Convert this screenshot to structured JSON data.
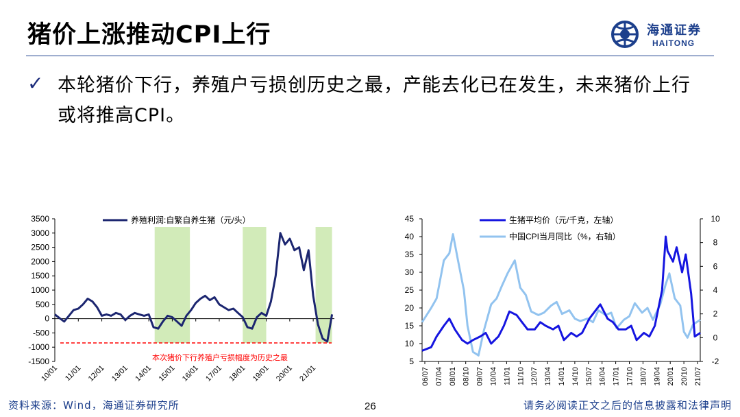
{
  "header": {
    "title": "猪价上涨推动CPI上行",
    "logo_cn": "海通证券",
    "logo_en": "HAITONG"
  },
  "bullet": {
    "text": "本轮猪价下行，养殖户亏损创历史之最，产能去化已在发生，未来猪价上行或将推高CPI。"
  },
  "footer": {
    "source": "资料来源：Wind，海通证券研究所",
    "page": "26",
    "disclaimer": "请务必阅读正文之后的信息披露和法律声明"
  },
  "colors": {
    "brand": "#1c3f8c",
    "navy": "#1c2670",
    "blue": "#1515e0",
    "lightblue": "#92c3ef",
    "shade": "#d2ebb9",
    "red": "#ff0000"
  },
  "chart_data": [
    {
      "type": "line",
      "legend": [
        "养殖利润:自繁自养生猪（元/头）"
      ],
      "annotation": "本次猪价下行养殖户亏损幅度为历史之最",
      "ylim": [
        -1500,
        3500
      ],
      "yticks": [
        "3500",
        "3000",
        "2500",
        "2000",
        "1500",
        "1000",
        "500",
        "0",
        "-500",
        "-1000",
        "-1500"
      ],
      "xlim": [
        2010.0,
        2021.9
      ],
      "xticks": [
        "10/01",
        "11/01",
        "12/01",
        "13/01",
        "14/01",
        "15/01",
        "16/01",
        "17/01",
        "18/01",
        "19/01",
        "20/01",
        "21/01"
      ],
      "reference_line": -850,
      "shaded_periods": [
        [
          2014.25,
          2015.75
        ],
        [
          2018.0,
          2019.0
        ],
        [
          2021.1,
          2021.8
        ]
      ],
      "series": [
        {
          "x": [
            2010.0,
            2010.2,
            2010.4,
            2010.6,
            2010.8,
            2011.0,
            2011.2,
            2011.4,
            2011.6,
            2011.8,
            2012.0,
            2012.2,
            2012.4,
            2012.6,
            2012.8,
            2013.0,
            2013.2,
            2013.4,
            2013.6,
            2013.8,
            2014.0,
            2014.2,
            2014.4,
            2014.6,
            2014.8,
            2015.0,
            2015.2,
            2015.4,
            2015.6,
            2015.8,
            2016.0,
            2016.2,
            2016.4,
            2016.6,
            2016.8,
            2017.0,
            2017.2,
            2017.4,
            2017.6,
            2017.8,
            2018.0,
            2018.2,
            2018.4,
            2018.6,
            2018.8,
            2019.0,
            2019.2,
            2019.4,
            2019.6,
            2019.8,
            2020.0,
            2020.2,
            2020.4,
            2020.6,
            2020.8,
            2021.0,
            2021.2,
            2021.4,
            2021.6,
            2021.8
          ],
          "values": [
            150,
            20,
            -100,
            100,
            300,
            350,
            500,
            700,
            600,
            400,
            100,
            150,
            100,
            200,
            150,
            -50,
            100,
            200,
            150,
            100,
            150,
            -300,
            -350,
            -100,
            100,
            50,
            -100,
            -250,
            100,
            300,
            550,
            700,
            800,
            650,
            750,
            500,
            400,
            300,
            350,
            200,
            50,
            -300,
            -350,
            50,
            200,
            100,
            600,
            1500,
            3000,
            2600,
            2800,
            2400,
            2500,
            1700,
            2400,
            800,
            -200,
            -700,
            -800,
            150
          ]
        }
      ]
    },
    {
      "type": "line",
      "legend": [
        "生猪平均价（元/千克，左轴）",
        "中国CPI当月同比（%，右轴）"
      ],
      "ylim": [
        5,
        45
      ],
      "yticks": [
        "45",
        "40",
        "35",
        "30",
        "25",
        "20",
        "15",
        "10",
        "5"
      ],
      "y2lim": [
        -2,
        10
      ],
      "y2ticks": [
        "10",
        "8",
        "6",
        "4",
        "2",
        "0",
        "-2"
      ],
      "xlim": [
        2006.5,
        2021.8
      ],
      "xticks": [
        "06/07",
        "07/04",
        "08/01",
        "08/10",
        "09/07",
        "10/04",
        "11/01",
        "11/10",
        "12/07",
        "13/04",
        "14/01",
        "14/10",
        "15/07",
        "16/04",
        "17/01",
        "17/10",
        "18/07",
        "19/04",
        "20/01",
        "20/10",
        "21/07"
      ],
      "series": [
        {
          "name": "生猪平均价（元/千克，左轴）",
          "axis": "left",
          "x": [
            2006.5,
            2007.0,
            2007.3,
            2007.7,
            2008.0,
            2008.3,
            2008.7,
            2009.0,
            2009.3,
            2009.7,
            2010.0,
            2010.3,
            2010.7,
            2011.0,
            2011.3,
            2011.7,
            2012.0,
            2012.3,
            2012.7,
            2013.0,
            2013.3,
            2013.7,
            2014.0,
            2014.3,
            2014.7,
            2015.0,
            2015.3,
            2015.7,
            2016.0,
            2016.3,
            2016.7,
            2017.0,
            2017.3,
            2017.7,
            2018.0,
            2018.3,
            2018.7,
            2019.0,
            2019.3,
            2019.7,
            2019.9,
            2020.0,
            2020.3,
            2020.5,
            2020.8,
            2021.0,
            2021.3,
            2021.5,
            2021.8
          ],
          "values": [
            8,
            9,
            12,
            15,
            17,
            14,
            11,
            10,
            11,
            12,
            13,
            10,
            12,
            15,
            19,
            18,
            16,
            14,
            14,
            16,
            15,
            14,
            15,
            11,
            13,
            12,
            13,
            17,
            19,
            21,
            17,
            16,
            14,
            14,
            15,
            11,
            13,
            12,
            15,
            25,
            40,
            36,
            33,
            37,
            30,
            35,
            24,
            12,
            13
          ]
        },
        {
          "name": "中国CPI当月同比（%，右轴）",
          "axis": "right",
          "x": [
            2006.5,
            2007.0,
            2007.3,
            2007.7,
            2008.0,
            2008.2,
            2008.5,
            2008.8,
            2009.0,
            2009.3,
            2009.6,
            2009.9,
            2010.3,
            2010.6,
            2010.9,
            2011.2,
            2011.6,
            2011.9,
            2012.2,
            2012.5,
            2012.9,
            2013.2,
            2013.6,
            2013.9,
            2014.2,
            2014.6,
            2014.9,
            2015.2,
            2015.6,
            2015.9,
            2016.2,
            2016.6,
            2016.9,
            2017.2,
            2017.6,
            2017.9,
            2018.2,
            2018.6,
            2018.9,
            2019.2,
            2019.6,
            2019.9,
            2020.1,
            2020.4,
            2020.7,
            2020.9,
            2021.1,
            2021.4,
            2021.8
          ],
          "values": [
            1.3,
            2.5,
            3.3,
            6.5,
            7.1,
            8.7,
            6.3,
            4.0,
            1.0,
            -1.2,
            -1.5,
            0.6,
            2.8,
            3.3,
            4.4,
            5.4,
            6.5,
            4.2,
            3.6,
            2.2,
            1.9,
            2.1,
            2.7,
            3.0,
            2.0,
            2.3,
            1.6,
            1.4,
            1.6,
            1.3,
            2.3,
            1.9,
            2.1,
            0.8,
            1.5,
            1.8,
            2.9,
            2.1,
            2.5,
            1.5,
            2.8,
            4.5,
            5.4,
            3.3,
            2.7,
            0.5,
            0.0,
            1.1,
            1.5
          ]
        }
      ]
    }
  ]
}
